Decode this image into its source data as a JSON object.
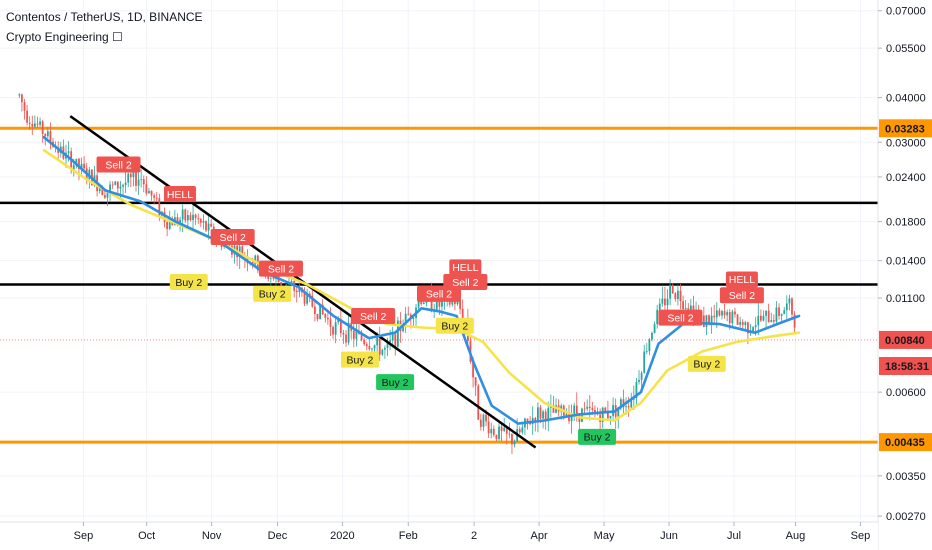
{
  "header": {
    "symbol_line": "Contentos / TetherUS, 1D, BINANCE",
    "indicator_line": "Crypto Engineering ☐"
  },
  "colors": {
    "candle_up": "#26a69a",
    "candle_down": "#ef5350",
    "ema_fast": "#2f8fe0",
    "ema_slow": "#f5e34a",
    "support_resistance_orange": "#ff9800",
    "level_black": "#000000",
    "sell_marker": "#ef5350",
    "buy_marker": "#f5e34a",
    "buy_marker_alt": "#22c55e",
    "price_badge": "#ef5350"
  },
  "chart_data": {
    "type": "candlestick",
    "scale": "log",
    "ylim": [
      0.0026,
      0.075
    ],
    "y_ticks": [
      "0.07000",
      "0.05500",
      "0.04000",
      "0.03000",
      "0.02400",
      "0.01800",
      "0.01400",
      "0.01100",
      "0.00600",
      "0.00350",
      "0.00270"
    ],
    "x_ticks": [
      "Sep",
      "Oct",
      "Nov",
      "Dec",
      "2020",
      "Feb",
      "2",
      "Apr",
      "May",
      "Jun",
      "Jul",
      "Aug",
      "Sep"
    ],
    "price_badges": [
      {
        "label": "0.03283",
        "value": 0.03283,
        "color": "#ff9800",
        "text_color": "#131722"
      },
      {
        "label": "0.00840",
        "value": 0.0084,
        "color": "#ef5350",
        "text_color": "#ffffff"
      },
      {
        "label": "18:58:31",
        "value": 0.0071,
        "color": "#ef5350",
        "text_color": "#ffffff"
      },
      {
        "label": "0.00435",
        "value": 0.00435,
        "color": "#ff9800",
        "text_color": "#131722"
      }
    ],
    "horizontal_levels": [
      {
        "value": 0.03283,
        "color": "#ff9800"
      },
      {
        "value": 0.0203,
        "color": "#000000"
      },
      {
        "value": 0.012,
        "color": "#000000"
      },
      {
        "value": 0.00435,
        "color": "#ff9800"
      }
    ],
    "last_price": 0.0084,
    "trendline": {
      "from": [
        0.08,
        0.0355
      ],
      "to": [
        0.61,
        0.0042
      ]
    },
    "anchors": [
      [
        0.0,
        0.025
      ],
      [
        0.015,
        0.045
      ],
      [
        0.03,
        0.036
      ],
      [
        0.05,
        0.032
      ],
      [
        0.07,
        0.028
      ],
      [
        0.12,
        0.022
      ],
      [
        0.16,
        0.024
      ],
      [
        0.19,
        0.018
      ],
      [
        0.22,
        0.0185
      ],
      [
        0.25,
        0.016
      ],
      [
        0.28,
        0.0145
      ],
      [
        0.31,
        0.0125
      ],
      [
        0.34,
        0.0115
      ],
      [
        0.38,
        0.0092
      ],
      [
        0.41,
        0.0085
      ],
      [
        0.44,
        0.0078
      ],
      [
        0.46,
        0.0095
      ],
      [
        0.48,
        0.011
      ],
      [
        0.5,
        0.0105
      ],
      [
        0.52,
        0.0108
      ],
      [
        0.53,
        0.0095
      ],
      [
        0.545,
        0.0052
      ],
      [
        0.56,
        0.0047
      ],
      [
        0.585,
        0.0044
      ],
      [
        0.61,
        0.0052
      ],
      [
        0.65,
        0.0053
      ],
      [
        0.69,
        0.0052
      ],
      [
        0.72,
        0.0058
      ],
      [
        0.745,
        0.0095
      ],
      [
        0.765,
        0.0118
      ],
      [
        0.8,
        0.0095
      ],
      [
        0.83,
        0.0098
      ],
      [
        0.85,
        0.0092
      ],
      [
        0.88,
        0.0098
      ],
      [
        0.9,
        0.0105
      ],
      [
        0.91,
        0.0085
      ]
    ],
    "ema_fast": [
      [
        0.05,
        0.031
      ],
      [
        0.08,
        0.027
      ],
      [
        0.12,
        0.022
      ],
      [
        0.16,
        0.0205
      ],
      [
        0.2,
        0.018
      ],
      [
        0.25,
        0.0158
      ],
      [
        0.3,
        0.013
      ],
      [
        0.34,
        0.0118
      ],
      [
        0.38,
        0.0098
      ],
      [
        0.42,
        0.0085
      ],
      [
        0.45,
        0.0088
      ],
      [
        0.48,
        0.0103
      ],
      [
        0.5,
        0.0101
      ],
      [
        0.52,
        0.0098
      ],
      [
        0.54,
        0.0072
      ],
      [
        0.56,
        0.0055
      ],
      [
        0.59,
        0.0049
      ],
      [
        0.62,
        0.005
      ],
      [
        0.66,
        0.0052
      ],
      [
        0.7,
        0.0053
      ],
      [
        0.73,
        0.006
      ],
      [
        0.75,
        0.0082
      ],
      [
        0.78,
        0.0094
      ],
      [
        0.82,
        0.0093
      ],
      [
        0.86,
        0.0088
      ],
      [
        0.89,
        0.0094
      ],
      [
        0.91,
        0.0098
      ]
    ],
    "ema_slow": [
      [
        0.05,
        0.0285
      ],
      [
        0.1,
        0.0235
      ],
      [
        0.15,
        0.02
      ],
      [
        0.2,
        0.0178
      ],
      [
        0.25,
        0.0158
      ],
      [
        0.3,
        0.0135
      ],
      [
        0.35,
        0.012
      ],
      [
        0.4,
        0.0103
      ],
      [
        0.44,
        0.0093
      ],
      [
        0.48,
        0.0091
      ],
      [
        0.52,
        0.009
      ],
      [
        0.55,
        0.0083
      ],
      [
        0.58,
        0.0068
      ],
      [
        0.62,
        0.0056
      ],
      [
        0.66,
        0.0051
      ],
      [
        0.7,
        0.005
      ],
      [
        0.73,
        0.0056
      ],
      [
        0.76,
        0.0069
      ],
      [
        0.8,
        0.0078
      ],
      [
        0.84,
        0.0083
      ],
      [
        0.88,
        0.0086
      ],
      [
        0.91,
        0.0088
      ]
    ],
    "signals": [
      {
        "label": "Sell 2",
        "kind": "sell",
        "x": 0.135,
        "y": 0.026
      },
      {
        "label": "HELL",
        "kind": "sell",
        "x": 0.205,
        "y": 0.0215
      },
      {
        "label": "Sell 2",
        "kind": "sell",
        "x": 0.265,
        "y": 0.0163
      },
      {
        "label": "Buy 2",
        "kind": "buy",
        "x": 0.215,
        "y": 0.0122
      },
      {
        "label": "Sell 2",
        "kind": "sell",
        "x": 0.32,
        "y": 0.0133
      },
      {
        "label": "Buy 2",
        "kind": "buy",
        "x": 0.31,
        "y": 0.0113
      },
      {
        "label": "Sell 2",
        "kind": "sell",
        "x": 0.425,
        "y": 0.0098
      },
      {
        "label": "Buy 2",
        "kind": "buy",
        "x": 0.41,
        "y": 0.0074
      },
      {
        "label": "Buy 2",
        "kind": "buy-green",
        "x": 0.45,
        "y": 0.0064
      },
      {
        "label": "Sell 2",
        "kind": "sell",
        "x": 0.5,
        "y": 0.0113
      },
      {
        "label": "HELL",
        "kind": "sell",
        "x": 0.53,
        "y": 0.0134
      },
      {
        "label": "Sell 2",
        "kind": "sell",
        "x": 0.53,
        "y": 0.0122
      },
      {
        "label": "Buy 2",
        "kind": "buy",
        "x": 0.518,
        "y": 0.0092
      },
      {
        "label": "Buy 2",
        "kind": "buy-green",
        "x": 0.68,
        "y": 0.0045
      },
      {
        "label": "Sell 2",
        "kind": "sell",
        "x": 0.775,
        "y": 0.0097
      },
      {
        "label": "Buy 2",
        "kind": "buy",
        "x": 0.805,
        "y": 0.0072
      },
      {
        "label": "HELL",
        "kind": "sell",
        "x": 0.845,
        "y": 0.0124
      },
      {
        "label": "Sell 2",
        "kind": "sell",
        "x": 0.845,
        "y": 0.0112
      }
    ]
  }
}
